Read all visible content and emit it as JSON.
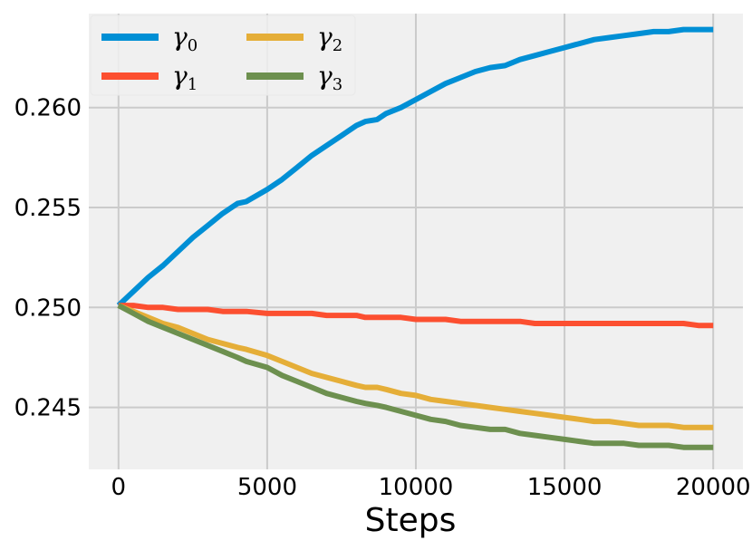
{
  "chart_data": {
    "type": "line",
    "title": "",
    "xlabel": "Steps",
    "ylabel": "",
    "xlim": [
      -1000,
      21000
    ],
    "ylim": [
      0.2419,
      0.2647
    ],
    "xticks": [
      0,
      5000,
      10000,
      15000,
      20000
    ],
    "xtick_labels": [
      "0",
      "5000",
      "10000",
      "15000",
      "20000"
    ],
    "yticks": [
      0.245,
      0.25,
      0.255,
      0.26
    ],
    "ytick_labels": [
      "0.245",
      "0.250",
      "0.255",
      "0.260"
    ],
    "grid": true,
    "legend_position": "top-left",
    "x": [
      0,
      500,
      1000,
      1500,
      2000,
      2500,
      3000,
      3500,
      4000,
      4300,
      5000,
      5500,
      6000,
      6500,
      7000,
      7500,
      8000,
      8300,
      8700,
      9000,
      9500,
      10000,
      10500,
      11000,
      11500,
      12000,
      12500,
      13000,
      13500,
      14000,
      14500,
      15000,
      15500,
      16000,
      16500,
      17000,
      17500,
      18000,
      18500,
      19000,
      19500,
      20000
    ],
    "series": [
      {
        "name": "γ0",
        "label_base": "γ",
        "label_sub": "0",
        "color": "#008fd5",
        "values": [
          0.2501,
          0.2508,
          0.2515,
          0.2521,
          0.2528,
          0.2535,
          0.2541,
          0.2547,
          0.2552,
          0.2553,
          0.2559,
          0.2564,
          0.257,
          0.2576,
          0.2581,
          0.2586,
          0.2591,
          0.2593,
          0.2594,
          0.2597,
          0.26,
          0.2604,
          0.2608,
          0.2612,
          0.2615,
          0.2618,
          0.262,
          0.2621,
          0.2624,
          0.2626,
          0.2628,
          0.263,
          0.2632,
          0.2634,
          0.2635,
          0.2636,
          0.2637,
          0.2638,
          0.2638,
          0.2639,
          0.2639,
          0.2639
        ]
      },
      {
        "name": "γ1",
        "label_base": "γ",
        "label_sub": "1",
        "color": "#fc4f30",
        "values": [
          0.2501,
          0.2501,
          0.25,
          0.25,
          0.2499,
          0.2499,
          0.2499,
          0.2498,
          0.2498,
          0.2498,
          0.2497,
          0.2497,
          0.2497,
          0.2497,
          0.2496,
          0.2496,
          0.2496,
          0.2495,
          0.2495,
          0.2495,
          0.2495,
          0.2494,
          0.2494,
          0.2494,
          0.2493,
          0.2493,
          0.2493,
          0.2493,
          0.2493,
          0.2492,
          0.2492,
          0.2492,
          0.2492,
          0.2492,
          0.2492,
          0.2492,
          0.2492,
          0.2492,
          0.2492,
          0.2492,
          0.2491,
          0.2491
        ]
      },
      {
        "name": "γ2",
        "label_base": "γ",
        "label_sub": "2",
        "color": "#e5ae38",
        "values": [
          0.2501,
          0.2498,
          0.2495,
          0.2492,
          0.249,
          0.2487,
          0.2484,
          0.2482,
          0.248,
          0.2479,
          0.2476,
          0.2473,
          0.247,
          0.2467,
          0.2465,
          0.2463,
          0.2461,
          0.246,
          0.246,
          0.2459,
          0.2457,
          0.2456,
          0.2454,
          0.2453,
          0.2452,
          0.2451,
          0.245,
          0.2449,
          0.2448,
          0.2447,
          0.2446,
          0.2445,
          0.2444,
          0.2443,
          0.2443,
          0.2442,
          0.2441,
          0.2441,
          0.2441,
          0.244,
          0.244,
          0.244
        ]
      },
      {
        "name": "γ3",
        "label_base": "γ",
        "label_sub": "3",
        "color": "#6d904f",
        "values": [
          0.2501,
          0.2497,
          0.2493,
          0.249,
          0.2487,
          0.2484,
          0.2481,
          0.2478,
          0.2475,
          0.2473,
          0.247,
          0.2466,
          0.2463,
          0.246,
          0.2457,
          0.2455,
          0.2453,
          0.2452,
          0.2451,
          0.245,
          0.2448,
          0.2446,
          0.2444,
          0.2443,
          0.2441,
          0.244,
          0.2439,
          0.2439,
          0.2437,
          0.2436,
          0.2435,
          0.2434,
          0.2433,
          0.2432,
          0.2432,
          0.2432,
          0.2431,
          0.2431,
          0.2431,
          0.243,
          0.243,
          0.243
        ]
      }
    ]
  }
}
